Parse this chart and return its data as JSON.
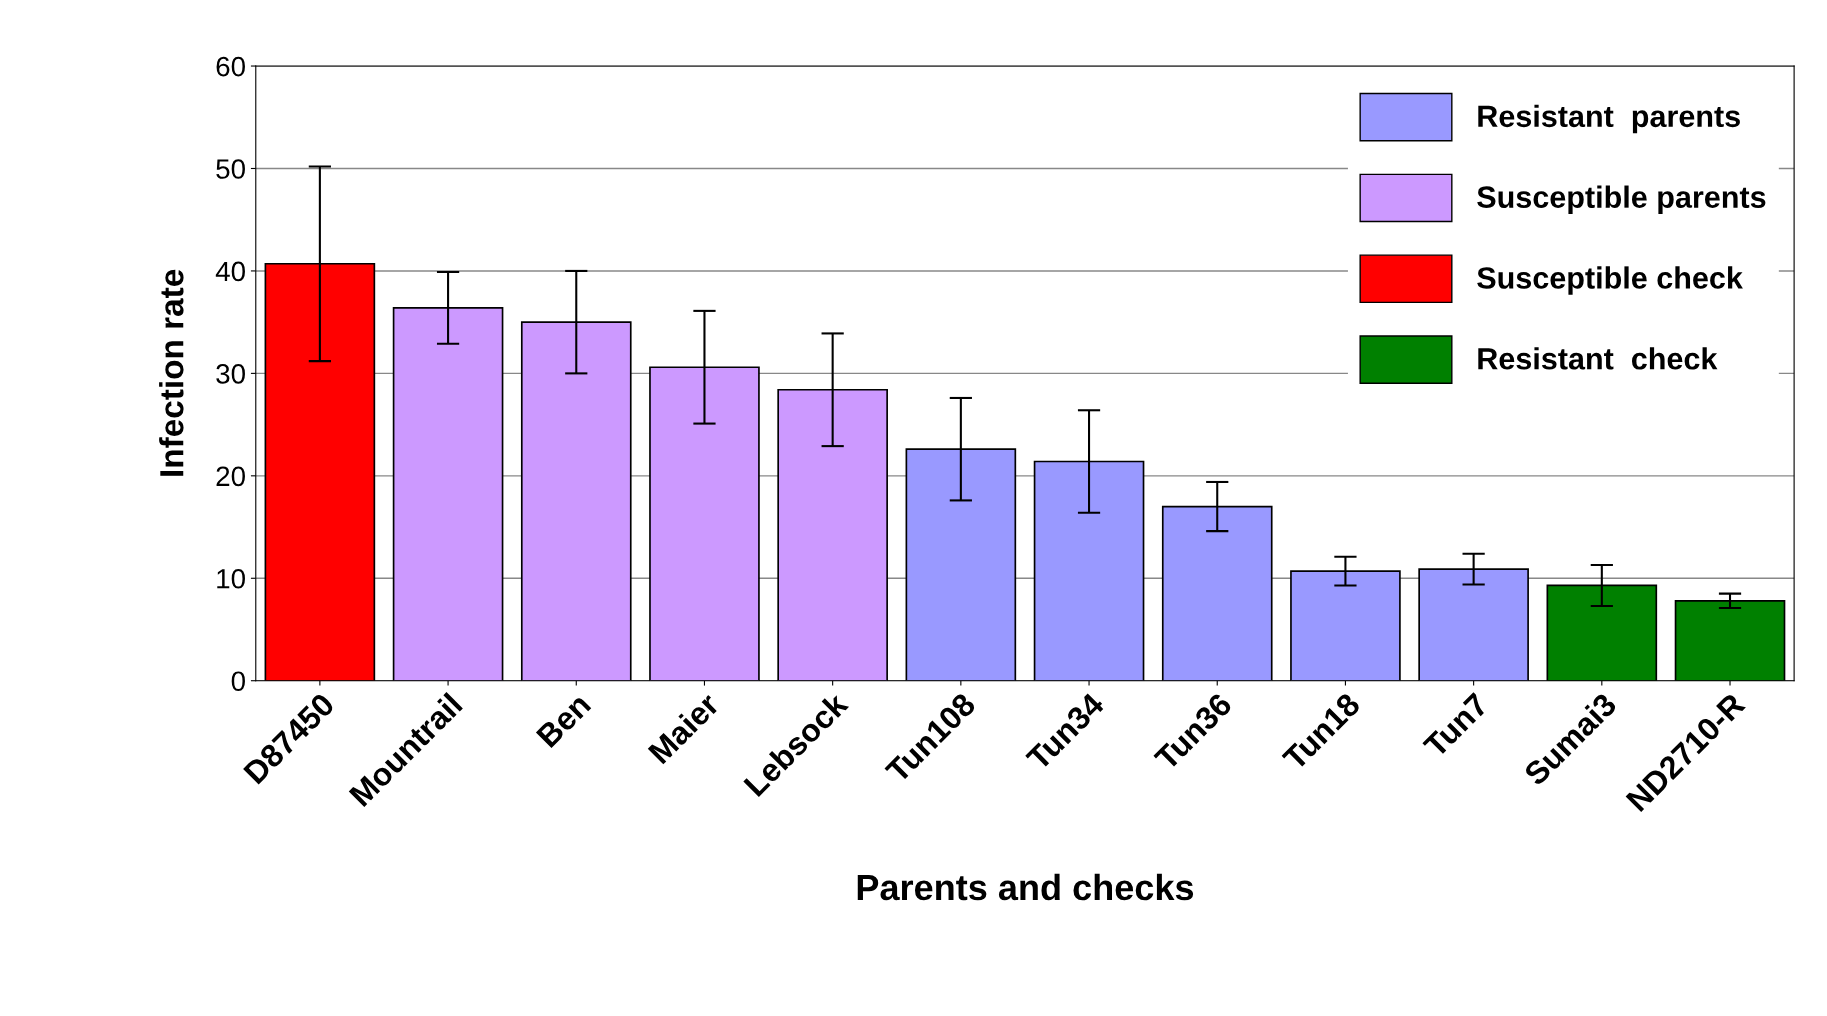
{
  "chart_data": {
    "type": "bar",
    "xlabel": "Parents and checks",
    "ylabel": "Infection rate",
    "categories": [
      "D87450",
      "Mountrail",
      "Ben",
      "Maier",
      "Lebsock",
      "Tun108",
      "Tun34",
      "Tun36",
      "Tun18",
      "Tun7",
      "Sumai3",
      "ND2710-R"
    ],
    "series": [
      {
        "name": "Resistant  parents",
        "color": "#9999ff",
        "values": [
          null,
          null,
          null,
          null,
          null,
          22.6,
          21.4,
          17.0,
          10.7,
          10.9,
          null,
          null
        ],
        "errors": [
          null,
          null,
          null,
          null,
          null,
          5,
          5,
          2.4,
          1.4,
          1.5,
          null,
          null
        ]
      },
      {
        "name": "Susceptible parents",
        "color": "#cc99ff",
        "values": [
          null,
          36.4,
          35.0,
          30.6,
          28.4,
          null,
          null,
          null,
          null,
          null,
          null,
          null
        ],
        "errors": [
          null,
          3.5,
          5,
          5.5,
          5.5,
          null,
          null,
          null,
          null,
          null,
          null,
          null
        ]
      },
      {
        "name": "Susceptible check",
        "color": "#ff0000",
        "values": [
          40.7,
          null,
          null,
          null,
          null,
          null,
          null,
          null,
          null,
          null,
          null,
          null
        ],
        "errors": [
          9.5,
          null,
          null,
          null,
          null,
          null,
          null,
          null,
          null,
          null,
          null,
          null
        ]
      },
      {
        "name": "Resistant  check",
        "color": "#008000",
        "values": [
          null,
          null,
          null,
          null,
          null,
          null,
          null,
          null,
          null,
          null,
          9.3,
          7.8
        ],
        "errors": [
          null,
          null,
          null,
          null,
          null,
          null,
          null,
          null,
          null,
          null,
          2,
          0.7
        ]
      }
    ],
    "ylim": [
      0,
      60
    ],
    "yticks": [
      0,
      10,
      20,
      30,
      40,
      50,
      60
    ],
    "grid": "y",
    "legend": "top right"
  }
}
